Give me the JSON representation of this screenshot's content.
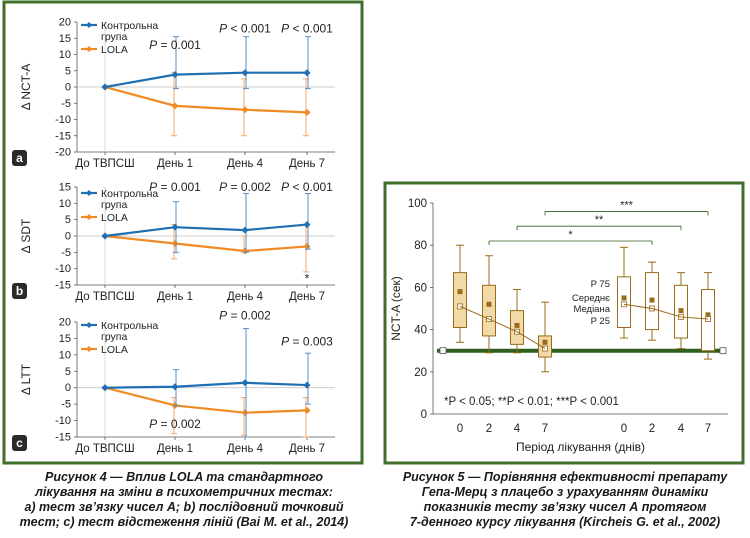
{
  "colors": {
    "frame": "#3f6f2a",
    "blue": "#1f6fb2",
    "orange": "#f08a24",
    "grey": "#777777",
    "box_edge": "#9a6a1a",
    "box_fill": "#f2d9a8",
    "mean": "#9a6a1a",
    "bar": "#2f5f1f"
  },
  "left_charts": [
    {
      "panel_label": "a",
      "chart_data": {
        "type": "line",
        "ylabel": "Δ NCT-A",
        "ylim": [
          -20,
          20
        ],
        "yticks": [
          20,
          15,
          10,
          5,
          0,
          -5,
          -10,
          -15,
          -20
        ],
        "categories": [
          "До ТВПСШ",
          "День 1",
          "День 4",
          "День 7"
        ],
        "legend": [
          "Контрольна група",
          "LOLA"
        ],
        "series": [
          {
            "name": "Контрольна група",
            "values": [
              0,
              3.8,
              4.4,
              4.4
            ],
            "err_low": [
              0,
              -0.5,
              -0.5,
              -0.5
            ],
            "err_high": [
              0,
              15.5,
              15.5,
              15.5
            ]
          },
          {
            "name": "LOLA",
            "values": [
              0,
              -5.8,
              -7.0,
              -7.8
            ],
            "err_low": [
              0,
              -15,
              -15,
              -15
            ],
            "err_high": [
              0,
              4.5,
              2.5,
              2.5
            ]
          }
        ],
        "annotations": [
          {
            "text": "P = 0.001",
            "x": 1,
            "y": 13
          },
          {
            "text": "P < 0.001",
            "x": 2,
            "y": 18
          },
          {
            "text": "P < 0.001",
            "x": 3,
            "y": 18
          }
        ]
      }
    },
    {
      "panel_label": "b",
      "chart_data": {
        "type": "line",
        "ylabel": "Δ SDT",
        "ylim": [
          -15,
          15
        ],
        "yticks": [
          15,
          10,
          5,
          0,
          -5,
          -10,
          -15
        ],
        "categories": [
          "До ТВПСШ",
          "День 1",
          "День 4",
          "День 7"
        ],
        "legend": [
          "Контрольна група",
          "LOLA"
        ],
        "series": [
          {
            "name": "Контрольна група",
            "values": [
              0,
              2.7,
              1.8,
              3.5
            ],
            "err_low": [
              0,
              -5,
              -5,
              -4
            ],
            "err_high": [
              0,
              10.5,
              13,
              13
            ]
          },
          {
            "name": "LOLA",
            "values": [
              0,
              -2.3,
              -4.6,
              -3.2
            ],
            "err_low": [
              0,
              -7,
              -5,
              -11
            ],
            "err_high": [
              0,
              3.5,
              0,
              3.5
            ]
          }
        ],
        "annotations": [
          {
            "text": "P = 0.001",
            "x": 1,
            "y": 15
          },
          {
            "text": "P = 0.002",
            "x": 2,
            "y": 15
          },
          {
            "text": "P < 0.001",
            "x": 3,
            "y": 15
          },
          {
            "text": "*",
            "x": 3,
            "y": -13
          }
        ]
      }
    },
    {
      "panel_label": "c",
      "chart_data": {
        "type": "line",
        "ylabel": "Δ LTT",
        "ylim": [
          -15,
          20
        ],
        "yticks": [
          20,
          15,
          10,
          5,
          0,
          -5,
          -10,
          -15
        ],
        "categories": [
          "До ТВПСШ",
          "День 1",
          "День 4",
          "День 7"
        ],
        "legend": [
          "Контрольна група",
          "LOLA"
        ],
        "series": [
          {
            "name": "Контрольна група",
            "values": [
              0,
              0.3,
              1.5,
              0.8
            ],
            "err_low": [
              0,
              -5.5,
              -15,
              -5
            ],
            "err_high": [
              0,
              5.5,
              18,
              10.5
            ]
          },
          {
            "name": "LOLA",
            "values": [
              0,
              -5.4,
              -7.6,
              -6.9
            ],
            "err_low": [
              0,
              -14,
              -14.5,
              -15
            ],
            "err_high": [
              0,
              -3,
              -3,
              -3
            ]
          }
        ],
        "annotations": [
          {
            "text": "P = 0.002",
            "x": 2,
            "y": 22
          },
          {
            "text": "P = 0.003",
            "x": 3,
            "y": 14
          },
          {
            "text": "P = 0.002",
            "x": 1,
            "y": -11
          }
        ]
      }
    }
  ],
  "right_chart": {
    "chart_data": {
      "type": "box",
      "ylabel": "NCT-A (сек)",
      "xlabel": "Період лікування (днів)",
      "ylim": [
        0,
        100
      ],
      "yticks": [
        0,
        20,
        40,
        60,
        80,
        100
      ],
      "day_labels": [
        "0",
        "2",
        "4",
        "7",
        "0",
        "2",
        "4",
        "7"
      ],
      "groups": [
        {
          "name": "left",
          "boxes": [
            {
              "day": "0",
              "whisker_low": 34,
              "p25": 41,
              "median": 51,
              "p75": 67,
              "whisker_high": 80,
              "mean": 58
            },
            {
              "day": "2",
              "whisker_low": 29,
              "p25": 37,
              "median": 45,
              "p75": 61,
              "whisker_high": 75,
              "mean": 52
            },
            {
              "day": "4",
              "whisker_low": 29,
              "p25": 33,
              "median": 39,
              "p75": 49,
              "whisker_high": 59,
              "mean": 42
            },
            {
              "day": "7",
              "whisker_low": 20,
              "p25": 27,
              "median": 31,
              "p75": 37,
              "whisker_high": 53,
              "mean": 34
            }
          ]
        },
        {
          "name": "right",
          "boxes": [
            {
              "day": "0",
              "whisker_low": 36,
              "p25": 41,
              "median": 52,
              "p75": 65,
              "whisker_high": 79,
              "mean": 55
            },
            {
              "day": "2",
              "whisker_low": 35,
              "p25": 40,
              "median": 50,
              "p75": 67,
              "whisker_high": 72,
              "mean": 54
            },
            {
              "day": "4",
              "whisker_low": 31,
              "p25": 36,
              "median": 46,
              "p75": 61,
              "whisker_high": 67,
              "mean": 49
            },
            {
              "day": "7",
              "whisker_low": 26,
              "p25": 30,
              "median": 45,
              "p75": 59,
              "whisker_high": 67,
              "mean": 47
            }
          ]
        }
      ],
      "legend_labels": [
        "P 75",
        "Середнє",
        "Медіана",
        "P 25"
      ],
      "significance": [
        {
          "text": "*",
          "from": 1,
          "to": 5,
          "y": 82
        },
        {
          "text": "**",
          "from": 2,
          "to": 6,
          "y": 89
        },
        {
          "text": "***",
          "from": 3,
          "to": 7,
          "y": 96
        }
      ],
      "footnote": "*P < 0.05; **P < 0.01; ***P < 0.001",
      "baseline": 30
    }
  },
  "captions": {
    "left_title": "Рисунок 4 — Вплив LOLA та стандартного",
    "left_line2": "лікування на зміни в психометричних тестах:",
    "left_line3": "а) тест зв’язку чисел А; b) послідовний точковий",
    "left_line4": "тест; c) тест відстеження ліній (Bai M. et al., 2014)",
    "right_title": "Рисунок 5 — Порівняння ефективності препарату",
    "right_line2": "Гепа-Мерц з плацебо з урахуванням динаміки",
    "right_line3": "показників тесту зв’язку чисел А протягом",
    "right_line4": "7-денного курсу лікування (Kircheis G. et al., 2002)"
  }
}
